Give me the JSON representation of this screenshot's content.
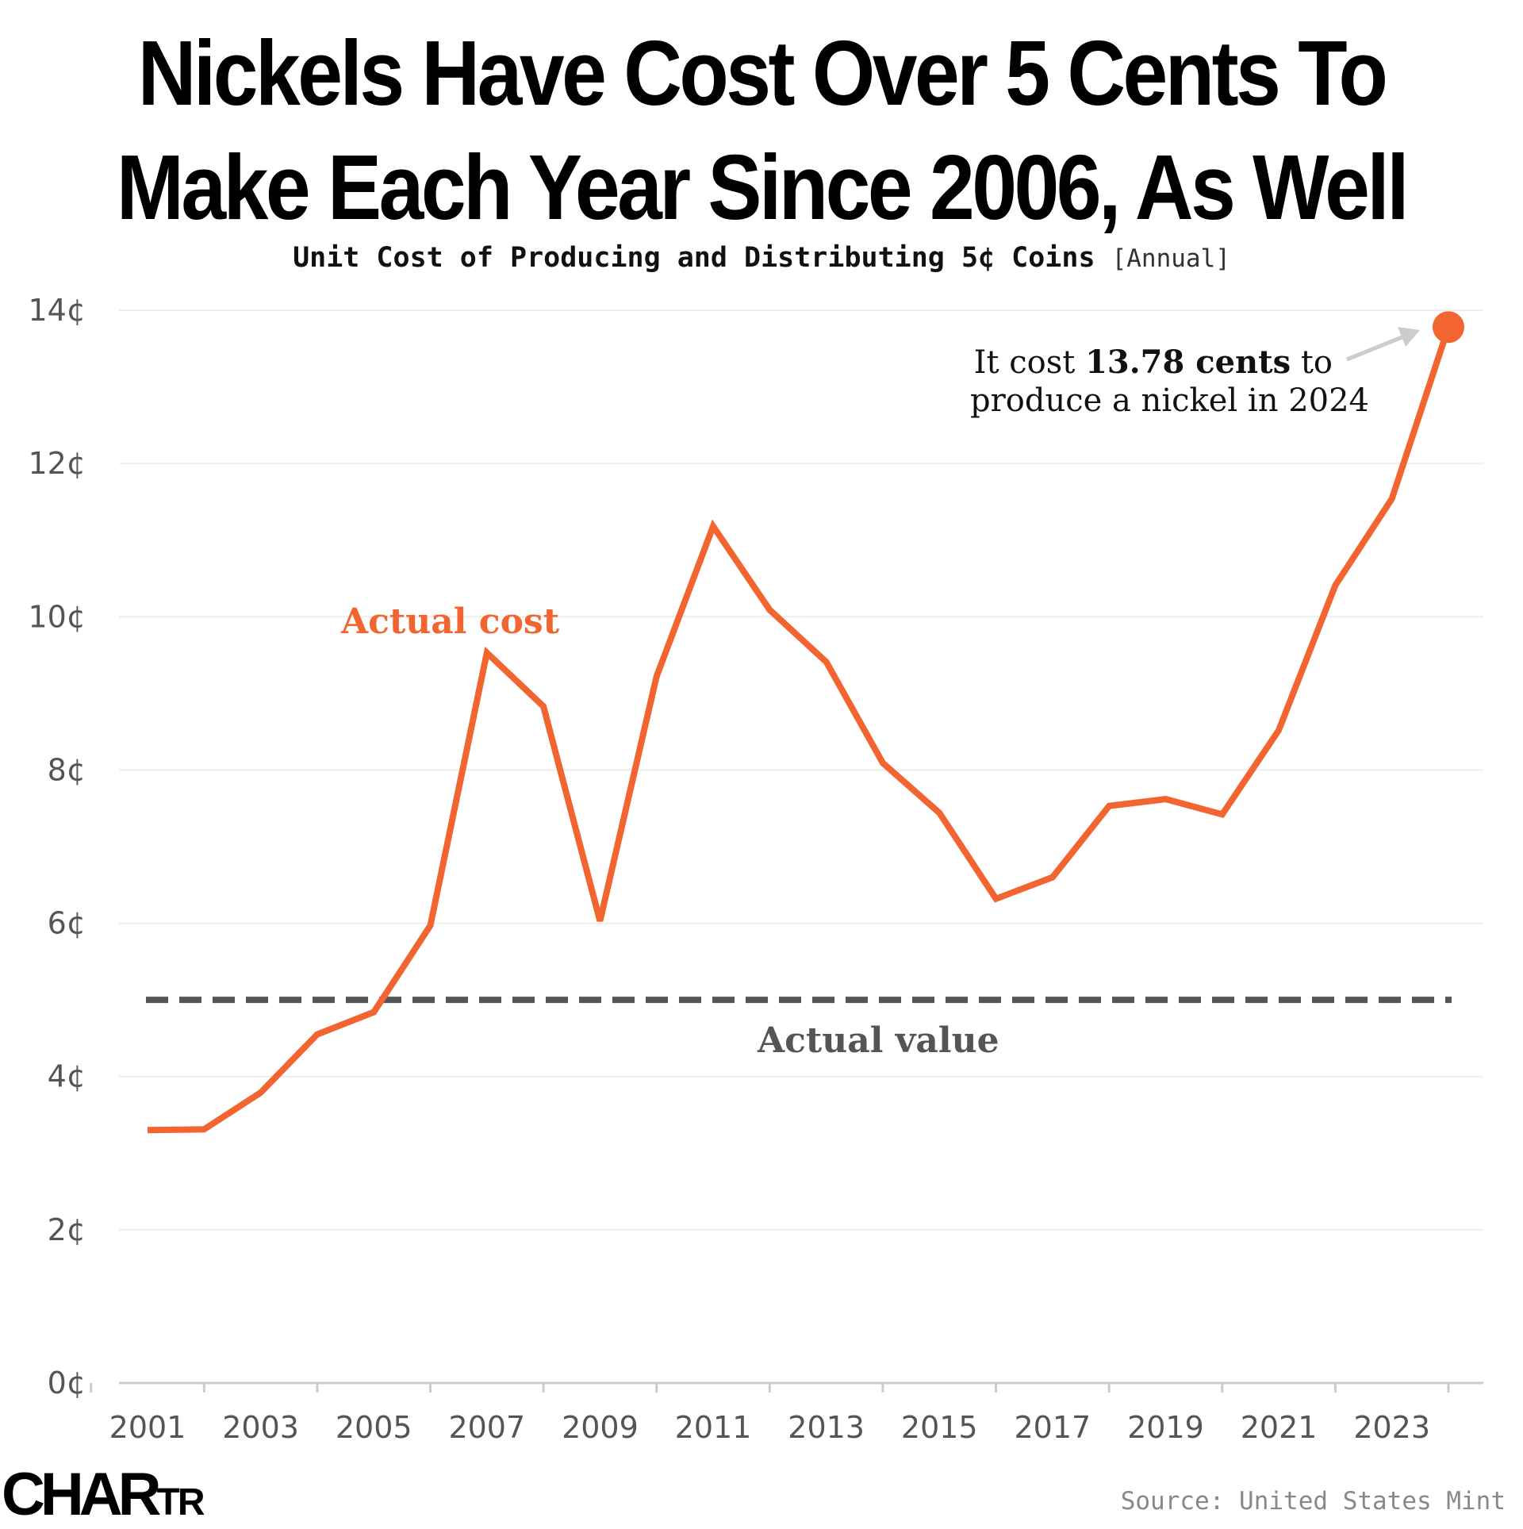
{
  "header": {
    "title_line1": "Nickels Have Cost Over 5 Cents To",
    "title_line2": "Make Each Year Since 2006, As Well",
    "subtitle": "Unit Cost of Producing and Distributing 5¢ Coins",
    "frequency": "[Annual]"
  },
  "footer": {
    "logo_big": "CHAR",
    "logo_small": "TR",
    "source": "Source: United States Mint"
  },
  "colors": {
    "cost_line": "#f26430",
    "value_line": "#555555",
    "grid": "#eeeeee",
    "axis": "#cccccc"
  },
  "chart_data": {
    "type": "line",
    "x": [
      2001,
      2002,
      2003,
      2004,
      2005,
      2006,
      2007,
      2008,
      2009,
      2010,
      2011,
      2012,
      2013,
      2014,
      2015,
      2016,
      2017,
      2018,
      2019,
      2020,
      2021,
      2022,
      2023,
      2024
    ],
    "series": [
      {
        "values": [
          3.3,
          3.31,
          3.79,
          4.55,
          4.84,
          5.97,
          9.53,
          8.83,
          6.03,
          9.22,
          11.18,
          10.09,
          9.41,
          8.09,
          7.44,
          6.32,
          6.6,
          7.53,
          7.62,
          7.42,
          8.52,
          10.41,
          11.54,
          13.78
        ]
      }
    ],
    "reference_line": {
      "value": 5,
      "style": "dashed"
    },
    "ylim": [
      0,
      14
    ],
    "yticks": [
      0,
      2,
      4,
      6,
      8,
      10,
      12,
      14
    ],
    "ytick_suffix": "¢",
    "xticks": [
      2001,
      2003,
      2005,
      2007,
      2009,
      2011,
      2013,
      2015,
      2017,
      2019,
      2021,
      2023
    ],
    "annotations": {
      "cost_label": "Actual cost",
      "value_label": "Actual value",
      "callout_pre": "It cost ",
      "callout_bold": "13.78 cents",
      "callout_post": " to",
      "callout_line2": "produce a nickel in 2024"
    },
    "grid": true,
    "legend": "none"
  }
}
